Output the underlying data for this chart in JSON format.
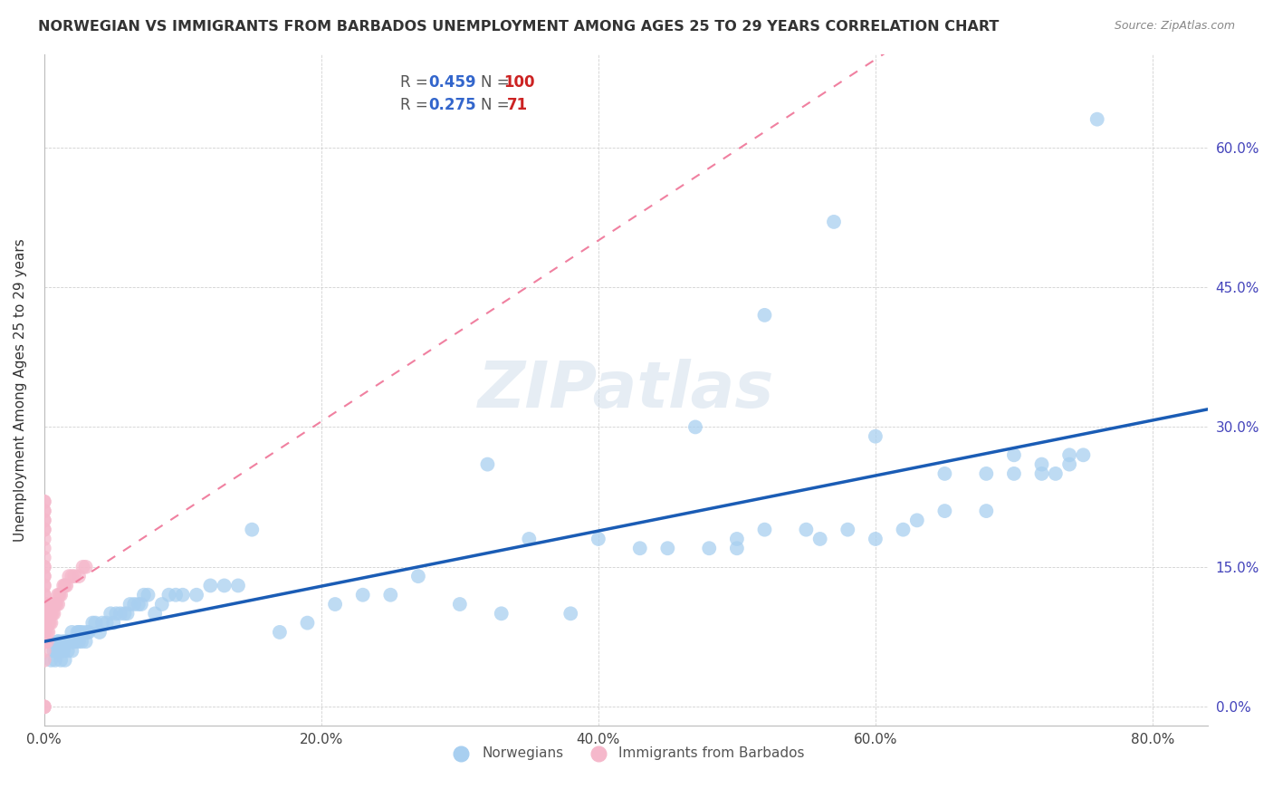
{
  "title": "NORWEGIAN VS IMMIGRANTS FROM BARBADOS UNEMPLOYMENT AMONG AGES 25 TO 29 YEARS CORRELATION CHART",
  "source": "Source: ZipAtlas.com",
  "xlabel_ticks": [
    "0.0%",
    "20.0%",
    "40.0%",
    "60.0%",
    "80.0%"
  ],
  "ylabel_ticks": [
    "0.0%",
    "15.0%",
    "30.0%",
    "45.0%",
    "60.0%"
  ],
  "xlim": [
    0.0,
    0.84
  ],
  "ylim": [
    -0.02,
    0.7
  ],
  "ylabel": "Unemployment Among Ages 25 to 29 years",
  "legend_norwegian": "Norwegians",
  "legend_barbados": "Immigrants from Barbados",
  "R_norwegian": 0.459,
  "N_norwegian": 100,
  "R_barbados": 0.275,
  "N_barbados": 71,
  "color_norwegian": "#a8cff0",
  "color_barbados": "#f5b8cb",
  "color_line_norwegian": "#1a5cb5",
  "color_line_barbados": "#f080a0",
  "watermark": "ZIPatlas",
  "nor_x": [
    0.005,
    0.007,
    0.008,
    0.009,
    0.01,
    0.01,
    0.01,
    0.012,
    0.012,
    0.013,
    0.013,
    0.014,
    0.015,
    0.015,
    0.016,
    0.017,
    0.018,
    0.018,
    0.02,
    0.02,
    0.02,
    0.022,
    0.023,
    0.024,
    0.025,
    0.025,
    0.026,
    0.027,
    0.028,
    0.03,
    0.031,
    0.032,
    0.035,
    0.037,
    0.04,
    0.042,
    0.045,
    0.048,
    0.05,
    0.052,
    0.055,
    0.058,
    0.06,
    0.062,
    0.065,
    0.068,
    0.07,
    0.072,
    0.075,
    0.08,
    0.085,
    0.09,
    0.095,
    0.1,
    0.11,
    0.12,
    0.13,
    0.14,
    0.15,
    0.17,
    0.19,
    0.21,
    0.23,
    0.25,
    0.27,
    0.3,
    0.33,
    0.35,
    0.38,
    0.4,
    0.43,
    0.45,
    0.47,
    0.5,
    0.52,
    0.55,
    0.58,
    0.6,
    0.63,
    0.65,
    0.68,
    0.7,
    0.72,
    0.74,
    0.32,
    0.48,
    0.5,
    0.52,
    0.56,
    0.57,
    0.6,
    0.62,
    0.65,
    0.68,
    0.7,
    0.72,
    0.73,
    0.74,
    0.75,
    0.76
  ],
  "nor_y": [
    0.05,
    0.06,
    0.05,
    0.06,
    0.06,
    0.07,
    0.07,
    0.05,
    0.06,
    0.06,
    0.07,
    0.06,
    0.05,
    0.07,
    0.07,
    0.06,
    0.07,
    0.07,
    0.06,
    0.07,
    0.08,
    0.07,
    0.07,
    0.08,
    0.07,
    0.08,
    0.08,
    0.07,
    0.08,
    0.07,
    0.08,
    0.08,
    0.09,
    0.09,
    0.08,
    0.09,
    0.09,
    0.1,
    0.09,
    0.1,
    0.1,
    0.1,
    0.1,
    0.11,
    0.11,
    0.11,
    0.11,
    0.12,
    0.12,
    0.1,
    0.11,
    0.12,
    0.12,
    0.12,
    0.12,
    0.13,
    0.13,
    0.13,
    0.19,
    0.08,
    0.09,
    0.11,
    0.12,
    0.12,
    0.14,
    0.11,
    0.1,
    0.18,
    0.1,
    0.18,
    0.17,
    0.17,
    0.3,
    0.18,
    0.19,
    0.19,
    0.19,
    0.29,
    0.2,
    0.21,
    0.21,
    0.27,
    0.26,
    0.26,
    0.26,
    0.17,
    0.17,
    0.42,
    0.18,
    0.52,
    0.18,
    0.19,
    0.25,
    0.25,
    0.25,
    0.25,
    0.25,
    0.27,
    0.27,
    0.63
  ],
  "bar_x": [
    0.0,
    0.0,
    0.0,
    0.0,
    0.0,
    0.0,
    0.0,
    0.0,
    0.0,
    0.0,
    0.0,
    0.0,
    0.0,
    0.0,
    0.0,
    0.0,
    0.0,
    0.0,
    0.0,
    0.0,
    0.0,
    0.0,
    0.0,
    0.0,
    0.0,
    0.0,
    0.0,
    0.0,
    0.0,
    0.0,
    0.0,
    0.0,
    0.0,
    0.0,
    0.0,
    0.0,
    0.0,
    0.0,
    0.0,
    0.0,
    0.0,
    0.0,
    0.0,
    0.0,
    0.0,
    0.002,
    0.002,
    0.003,
    0.003,
    0.004,
    0.004,
    0.005,
    0.005,
    0.006,
    0.007,
    0.007,
    0.008,
    0.009,
    0.01,
    0.01,
    0.011,
    0.012,
    0.014,
    0.015,
    0.016,
    0.018,
    0.02,
    0.022,
    0.025,
    0.028,
    0.03
  ],
  "bar_y": [
    0.0,
    0.0,
    0.0,
    0.05,
    0.06,
    0.07,
    0.07,
    0.08,
    0.08,
    0.09,
    0.09,
    0.1,
    0.1,
    0.1,
    0.11,
    0.11,
    0.12,
    0.12,
    0.13,
    0.13,
    0.14,
    0.14,
    0.15,
    0.15,
    0.16,
    0.17,
    0.18,
    0.19,
    0.19,
    0.2,
    0.2,
    0.21,
    0.21,
    0.22,
    0.22,
    0.07,
    0.08,
    0.08,
    0.09,
    0.09,
    0.1,
    0.1,
    0.1,
    0.11,
    0.11,
    0.07,
    0.08,
    0.08,
    0.09,
    0.09,
    0.1,
    0.09,
    0.1,
    0.1,
    0.1,
    0.11,
    0.11,
    0.11,
    0.11,
    0.12,
    0.12,
    0.12,
    0.13,
    0.13,
    0.13,
    0.14,
    0.14,
    0.14,
    0.14,
    0.15,
    0.15
  ]
}
